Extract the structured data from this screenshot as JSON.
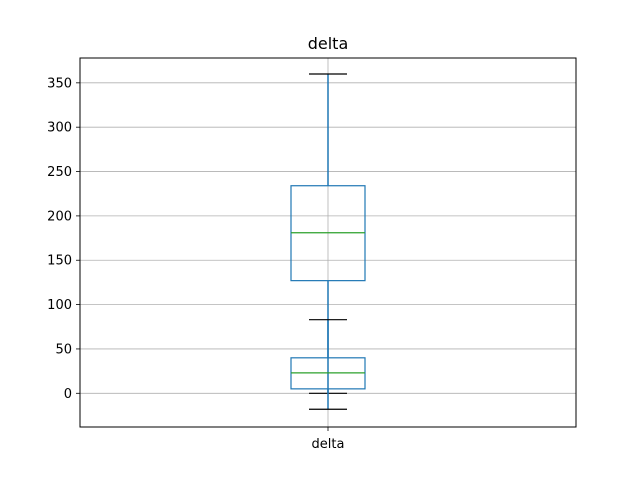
{
  "chart_data": {
    "type": "box",
    "title": "delta",
    "categories": [
      "delta"
    ],
    "xlabel": "",
    "ylabel": "",
    "ylim": [
      -38,
      378
    ],
    "yticks": [
      0,
      50,
      100,
      150,
      200,
      250,
      300,
      350
    ],
    "grid": true,
    "boxes": [
      {
        "category": "delta",
        "whisker_low": 0,
        "q1": 127,
        "median": 181,
        "q3": 234,
        "whisker_high": 360
      },
      {
        "category": "delta",
        "whisker_low": -18,
        "q1": 5,
        "median": 23,
        "q3": 40,
        "whisker_high": 83
      }
    ],
    "colors": {
      "box": "#1f77b4",
      "median": "#2ca02c",
      "whisker": "#1f77b4",
      "cap": "#000000",
      "grid": "#b0b0b0"
    }
  }
}
